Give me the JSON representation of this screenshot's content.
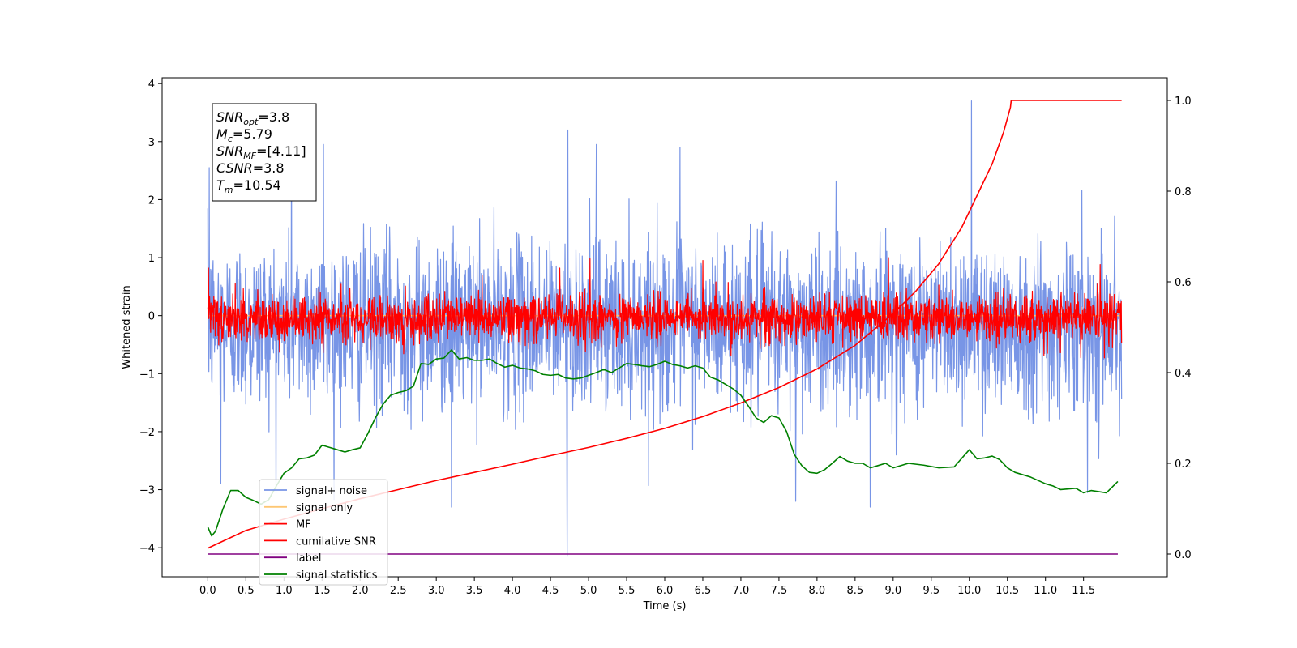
{
  "chart_data": {
    "type": "line",
    "xlabel": "Time (s)",
    "ylabel": "Whitened strain",
    "xlim": [
      -0.6,
      12.6
    ],
    "ylim": [
      -4.5,
      4.1
    ],
    "y2lim": [
      -0.05,
      1.05
    ],
    "x_ticks": [
      0.0,
      0.5,
      1.0,
      1.5,
      2.0,
      2.5,
      3.0,
      3.5,
      4.0,
      4.5,
      5.0,
      5.5,
      6.0,
      6.5,
      7.0,
      7.5,
      8.0,
      8.5,
      9.0,
      9.5,
      10.0,
      10.5,
      11.0,
      11.5
    ],
    "x_tick_labels": [
      "0.0",
      "0.5",
      "1.0",
      "1.5",
      "2.0",
      "2.5",
      "3.0",
      "3.5",
      "4.0",
      "4.5",
      "5.0",
      "5.5",
      "6.0",
      "6.5",
      "7.0",
      "7.5",
      "8.0",
      "8.5",
      "9.0",
      "9.5",
      "10.0",
      "10.5",
      "11.0",
      "11.5"
    ],
    "y_ticks": [
      -4,
      -3,
      -2,
      -1,
      0,
      1,
      2,
      3,
      4
    ],
    "y_tick_labels": [
      "−4",
      "−3",
      "−2",
      "−1",
      "0",
      "1",
      "2",
      "3",
      "4"
    ],
    "y2_ticks": [
      0.0,
      0.2,
      0.4,
      0.6,
      0.8,
      1.0
    ],
    "y2_tick_labels": [
      "0.0",
      "0.2",
      "0.4",
      "0.6",
      "0.8",
      "1.0"
    ],
    "grid": false,
    "legend_placement": "lower-left",
    "annotation": [
      {
        "base": "SNR",
        "sub": "opt",
        "value": "=3.8"
      },
      {
        "base": "M",
        "sub": "c",
        "value": "=5.79"
      },
      {
        "base": "SNR",
        "sub": "MF",
        "value": "=[4.11]"
      },
      {
        "base": "CSNR",
        "sub": "",
        "value": "=3.8"
      },
      {
        "base": "T",
        "sub": "m",
        "value": "=10.54"
      }
    ],
    "series": [
      {
        "name": "signal+ noise",
        "color": "#7895e6",
        "axis": "left",
        "style": "noise",
        "x_range": [
          0.0,
          12.0
        ],
        "center": -0.15,
        "sigma": 0.72,
        "spikes": [
          [
            0.17,
            -2.9
          ],
          [
            0.02,
            2.55
          ],
          [
            1.1,
            2.95
          ],
          [
            1.52,
            2.95
          ],
          [
            3.2,
            -3.3
          ],
          [
            4.73,
            3.2
          ],
          [
            4.72,
            -4.15
          ],
          [
            7.72,
            -3.2
          ],
          [
            8.7,
            -3.3
          ],
          [
            10.03,
            3.7
          ],
          [
            11.55,
            -3.05
          ],
          [
            5.1,
            2.95
          ],
          [
            6.2,
            2.9
          ]
        ]
      },
      {
        "name": "signal only",
        "color": "#fdc774",
        "axis": "left",
        "x": [
          0.0,
          12.0
        ],
        "y": [
          0.0,
          0.0
        ]
      },
      {
        "name": "MF",
        "color": "#ff0000",
        "axis": "left",
        "style": "noise",
        "x_range": [
          0.0,
          12.0
        ],
        "center": -0.05,
        "sigma": 0.2,
        "spikes": [
          [
            0.01,
            0.82
          ],
          [
            3.6,
            0.7
          ],
          [
            5.02,
            0.98
          ],
          [
            6.5,
            0.95
          ],
          [
            8.94,
            1.0
          ],
          [
            11.72,
            0.88
          ],
          [
            4.62,
            0.82
          ]
        ]
      },
      {
        "name": "cumilative SNR",
        "color": "#ff0000",
        "axis": "right",
        "x": [
          0.0,
          0.5,
          1.0,
          1.5,
          2.0,
          2.5,
          3.0,
          3.5,
          4.0,
          4.5,
          5.0,
          5.5,
          6.0,
          6.5,
          7.0,
          7.5,
          8.0,
          8.5,
          9.0,
          9.3,
          9.6,
          9.9,
          10.1,
          10.3,
          10.45,
          10.54,
          10.55,
          12.0
        ],
        "y": [
          0.013,
          0.052,
          0.077,
          0.1,
          0.122,
          0.142,
          0.162,
          0.18,
          0.198,
          0.217,
          0.235,
          0.255,
          0.277,
          0.303,
          0.333,
          0.367,
          0.408,
          0.46,
          0.53,
          0.58,
          0.64,
          0.72,
          0.79,
          0.86,
          0.93,
          0.985,
          1.0,
          1.0
        ]
      },
      {
        "name": "label",
        "color": "#800080",
        "axis": "right",
        "x": [
          0.0,
          11.95
        ],
        "y": [
          0.0,
          0.0
        ]
      },
      {
        "name": "signal statistics",
        "color": "#008000",
        "axis": "right",
        "x": [
          0.0,
          0.05,
          0.1,
          0.2,
          0.3,
          0.4,
          0.5,
          0.6,
          0.7,
          0.8,
          0.9,
          1.0,
          1.1,
          1.2,
          1.3,
          1.4,
          1.5,
          1.6,
          1.7,
          1.8,
          1.9,
          2.0,
          2.1,
          2.2,
          2.3,
          2.4,
          2.5,
          2.6,
          2.7,
          2.8,
          2.9,
          3.0,
          3.1,
          3.2,
          3.3,
          3.4,
          3.5,
          3.6,
          3.7,
          3.8,
          3.9,
          4.0,
          4.1,
          4.2,
          4.3,
          4.4,
          4.5,
          4.6,
          4.7,
          4.8,
          4.9,
          5.0,
          5.1,
          5.2,
          5.3,
          5.4,
          5.5,
          5.6,
          5.7,
          5.8,
          5.9,
          6.0,
          6.1,
          6.2,
          6.3,
          6.4,
          6.5,
          6.6,
          6.7,
          6.8,
          6.9,
          7.0,
          7.1,
          7.2,
          7.3,
          7.4,
          7.5,
          7.6,
          7.7,
          7.8,
          7.9,
          8.0,
          8.1,
          8.2,
          8.3,
          8.4,
          8.5,
          8.6,
          8.7,
          8.8,
          8.9,
          9.0,
          9.2,
          9.4,
          9.6,
          9.8,
          10.0,
          10.1,
          10.2,
          10.3,
          10.4,
          10.5,
          10.6,
          10.8,
          11.0,
          11.1,
          11.2,
          11.4,
          11.5,
          11.6,
          11.8,
          11.95
        ],
        "y": [
          0.06,
          0.04,
          0.05,
          0.1,
          0.14,
          0.14,
          0.125,
          0.118,
          0.11,
          0.12,
          0.15,
          0.178,
          0.19,
          0.21,
          0.212,
          0.218,
          0.24,
          0.235,
          0.23,
          0.225,
          0.23,
          0.234,
          0.265,
          0.3,
          0.33,
          0.35,
          0.356,
          0.36,
          0.37,
          0.42,
          0.418,
          0.43,
          0.432,
          0.45,
          0.43,
          0.433,
          0.427,
          0.427,
          0.43,
          0.42,
          0.412,
          0.416,
          0.41,
          0.408,
          0.404,
          0.396,
          0.394,
          0.396,
          0.388,
          0.386,
          0.388,
          0.394,
          0.4,
          0.407,
          0.4,
          0.41,
          0.42,
          0.418,
          0.415,
          0.413,
          0.418,
          0.425,
          0.418,
          0.415,
          0.41,
          0.415,
          0.41,
          0.39,
          0.384,
          0.374,
          0.364,
          0.35,
          0.326,
          0.3,
          0.29,
          0.305,
          0.3,
          0.27,
          0.22,
          0.195,
          0.18,
          0.178,
          0.186,
          0.2,
          0.215,
          0.205,
          0.2,
          0.2,
          0.19,
          0.195,
          0.2,
          0.19,
          0.2,
          0.196,
          0.19,
          0.192,
          0.23,
          0.21,
          0.212,
          0.216,
          0.208,
          0.19,
          0.18,
          0.17,
          0.155,
          0.15,
          0.142,
          0.145,
          0.135,
          0.14,
          0.135,
          0.16
        ]
      }
    ]
  }
}
